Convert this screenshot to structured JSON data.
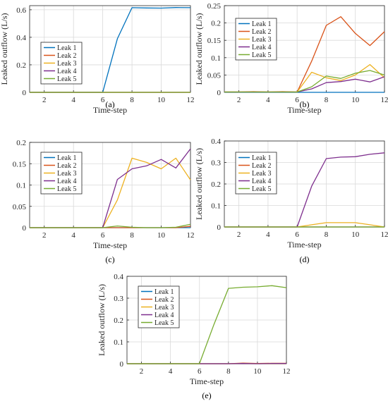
{
  "colors": {
    "Leak 1": "#0072BD",
    "Leak 2": "#D95319",
    "Leak 3": "#EDB120",
    "Leak 4": "#7E2F8E",
    "Leak 5": "#77AC30",
    "axis": "#262626",
    "grid": "#d9d9d9"
  },
  "chart_data": [
    {
      "panel_label": "(a)",
      "type": "line",
      "xlabel": "Time-step",
      "ylabel": "Leaked outflow (L/s)",
      "xlim": [
        1,
        12
      ],
      "ylim": [
        0,
        0.63
      ],
      "xticks": [
        2,
        4,
        6,
        8,
        10,
        12
      ],
      "yticks": [
        0,
        0.2,
        0.4,
        0.6
      ],
      "ytick_labels": [
        "0",
        "0.2",
        "0.4",
        "0.6"
      ],
      "grid": true,
      "legend_position": "middle-left",
      "x": [
        1,
        2,
        3,
        4,
        5,
        6,
        7,
        8,
        9,
        10,
        11,
        12
      ],
      "series": [
        {
          "name": "Leak 1",
          "values": [
            0,
            0,
            0,
            0,
            0,
            0,
            0.39,
            0.615,
            0.613,
            0.612,
            0.616,
            0.615
          ]
        },
        {
          "name": "Leak 2",
          "values": [
            0,
            0,
            0,
            0,
            0,
            0,
            0,
            0,
            0,
            0,
            0,
            0
          ]
        },
        {
          "name": "Leak 3",
          "values": [
            0,
            0,
            0,
            0,
            0,
            0,
            0,
            0,
            0,
            0,
            0,
            0
          ]
        },
        {
          "name": "Leak 4",
          "values": [
            0,
            0,
            0,
            0,
            0,
            0,
            0,
            0,
            0,
            0,
            0,
            0
          ]
        },
        {
          "name": "Leak 5",
          "values": [
            0,
            0,
            0,
            0,
            0,
            0,
            0,
            0,
            0,
            0,
            0,
            0
          ]
        }
      ]
    },
    {
      "panel_label": "(b)",
      "type": "line",
      "xlabel": "Time-step",
      "ylabel": "Leaked outflow (L/s)",
      "xlim": [
        1,
        12
      ],
      "ylim": [
        0,
        0.25
      ],
      "xticks": [
        2,
        4,
        6,
        8,
        10,
        12
      ],
      "yticks": [
        0,
        0.05,
        0.1,
        0.15,
        0.2,
        0.25
      ],
      "ytick_labels": [
        "0",
        "0.05",
        "0.1",
        "0.15",
        "0.2",
        "0.25"
      ],
      "grid": true,
      "legend_position": "top-left",
      "x": [
        1,
        2,
        3,
        4,
        5,
        6,
        7,
        8,
        9,
        10,
        11,
        12
      ],
      "series": [
        {
          "name": "Leak 1",
          "values": [
            0,
            0,
            0,
            0,
            0,
            0,
            0,
            0,
            0,
            0,
            0,
            0
          ]
        },
        {
          "name": "Leak 2",
          "values": [
            0.001,
            0.001,
            0.002,
            0.001,
            0.002,
            0.001,
            0.09,
            0.193,
            0.218,
            0.17,
            0.135,
            0.175
          ]
        },
        {
          "name": "Leak 3",
          "values": [
            0.001,
            0.001,
            0.001,
            0.001,
            0.001,
            0.001,
            0.058,
            0.042,
            0.034,
            0.05,
            0.08,
            0.042
          ]
        },
        {
          "name": "Leak 4",
          "values": [
            0.001,
            0.001,
            0.001,
            0.001,
            0.001,
            0.001,
            0.01,
            0.028,
            0.031,
            0.038,
            0.03,
            0.045
          ]
        },
        {
          "name": "Leak 5",
          "values": [
            0.001,
            0.001,
            0.001,
            0.001,
            0.001,
            0.001,
            0.016,
            0.047,
            0.04,
            0.055,
            0.063,
            0.05
          ]
        }
      ]
    },
    {
      "panel_label": "(c)",
      "type": "line",
      "xlabel": "Time-step",
      "ylabel": "",
      "xlim": [
        1,
        12
      ],
      "ylim": [
        0,
        0.2
      ],
      "xticks": [
        2,
        4,
        6,
        8,
        10,
        12
      ],
      "yticks": [
        0,
        0.05,
        0.1,
        0.15,
        0.2
      ],
      "ytick_labels": [
        "0",
        "0.05",
        "0.1",
        "0.15",
        "0.2"
      ],
      "grid": true,
      "legend_position": "top-left",
      "x": [
        1,
        2,
        3,
        4,
        5,
        6,
        7,
        8,
        9,
        10,
        11,
        12
      ],
      "series": [
        {
          "name": "Leak 1",
          "values": [
            0,
            0,
            0,
            0,
            0,
            0,
            0,
            0,
            0,
            0,
            0,
            0
          ]
        },
        {
          "name": "Leak 2",
          "values": [
            0,
            0,
            0,
            0,
            0,
            0,
            0,
            0,
            0,
            0,
            0,
            0.003
          ]
        },
        {
          "name": "Leak 3",
          "values": [
            0,
            0,
            0,
            0,
            0,
            0,
            0.065,
            0.163,
            0.153,
            0.138,
            0.163,
            0.112
          ]
        },
        {
          "name": "Leak 4",
          "values": [
            0,
            0,
            0,
            0,
            0,
            0,
            0.113,
            0.138,
            0.145,
            0.16,
            0.14,
            0.185
          ]
        },
        {
          "name": "Leak 5",
          "values": [
            0,
            0,
            0,
            0,
            0,
            0,
            0.004,
            0.001,
            0,
            0,
            0.001,
            0.008
          ]
        }
      ]
    },
    {
      "panel_label": "(d)",
      "type": "line",
      "xlabel": "Time-step",
      "ylabel": "Leaked outflow (L/s)",
      "xlim": [
        1,
        12
      ],
      "ylim": [
        0,
        0.4
      ],
      "xticks": [
        2,
        4,
        6,
        8,
        10,
        12
      ],
      "yticks": [
        0,
        0.1,
        0.2,
        0.3,
        0.4
      ],
      "ytick_labels": [
        "0",
        "0.1",
        "0.2",
        "0.3",
        "0.4"
      ],
      "grid": true,
      "legend_position": "top-left",
      "x": [
        1,
        2,
        3,
        4,
        5,
        6,
        7,
        8,
        9,
        10,
        11,
        12
      ],
      "series": [
        {
          "name": "Leak 1",
          "values": [
            0,
            0,
            0,
            0,
            0,
            0,
            0,
            0,
            0,
            0,
            0,
            0
          ]
        },
        {
          "name": "Leak 2",
          "values": [
            0,
            0,
            0,
            0,
            0,
            0,
            0,
            0,
            0,
            0,
            0,
            0
          ]
        },
        {
          "name": "Leak 3",
          "values": [
            0,
            0,
            0,
            0,
            0,
            0,
            0.01,
            0.02,
            0.02,
            0.02,
            0.01,
            0
          ]
        },
        {
          "name": "Leak 4",
          "values": [
            0,
            0,
            0,
            0,
            0,
            0,
            0.19,
            0.318,
            0.325,
            0.327,
            0.338,
            0.345
          ]
        },
        {
          "name": "Leak 5",
          "values": [
            0,
            0,
            0,
            0,
            0,
            0,
            0,
            0,
            0,
            0,
            0,
            0
          ]
        }
      ]
    },
    {
      "panel_label": "(e)",
      "type": "line",
      "xlabel": "Time-step",
      "ylabel": "Leaked outflow (L/s)",
      "xlim": [
        1,
        12
      ],
      "ylim": [
        0,
        0.4
      ],
      "xticks": [
        2,
        4,
        6,
        8,
        10,
        12
      ],
      "yticks": [
        0,
        0.1,
        0.2,
        0.3,
        0.4
      ],
      "ytick_labels": [
        "0",
        "0.1",
        "0.2",
        "0.3",
        "0.4"
      ],
      "grid": true,
      "legend_position": "top-left",
      "x": [
        1,
        2,
        3,
        4,
        5,
        6,
        7,
        8,
        9,
        10,
        11,
        12
      ],
      "series": [
        {
          "name": "Leak 1",
          "values": [
            0,
            0,
            0,
            0,
            0,
            0,
            0,
            0,
            0,
            0,
            0,
            0
          ]
        },
        {
          "name": "Leak 2",
          "values": [
            0,
            0,
            0,
            0,
            0,
            0,
            0,
            0,
            0.003,
            0.001,
            0.002,
            0.002
          ]
        },
        {
          "name": "Leak 3",
          "values": [
            0,
            0,
            0,
            0,
            0,
            0,
            0,
            0,
            0,
            0,
            0,
            0
          ]
        },
        {
          "name": "Leak 4",
          "values": [
            0,
            0,
            0,
            0,
            0,
            0,
            0,
            0,
            0.001,
            0,
            0.001,
            0.001
          ]
        },
        {
          "name": "Leak 5",
          "values": [
            0,
            0,
            0,
            0,
            0,
            0,
            0.18,
            0.345,
            0.35,
            0.352,
            0.357,
            0.348
          ]
        }
      ]
    }
  ]
}
